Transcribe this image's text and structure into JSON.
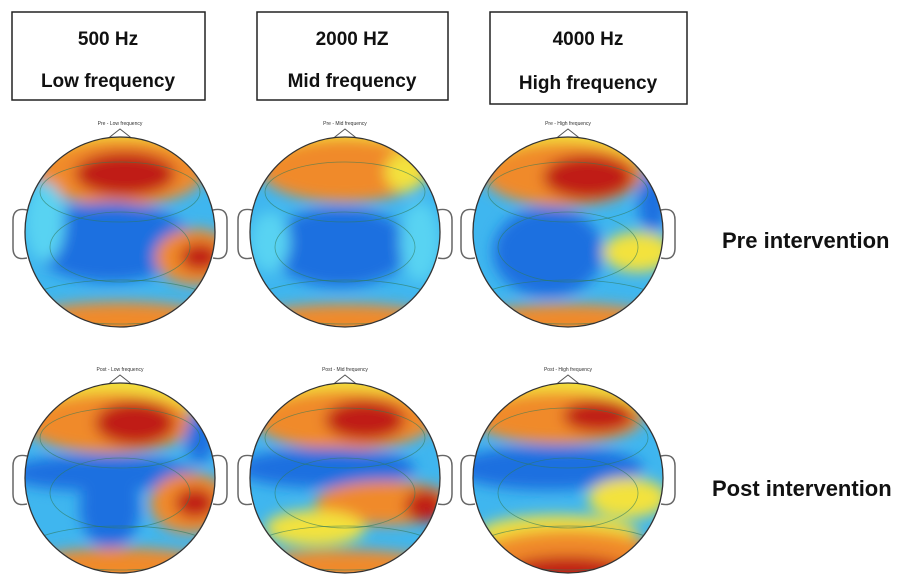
{
  "columns": [
    {
      "title": "500 Hz",
      "subtitle": "Low frequency"
    },
    {
      "title": "2000 HZ",
      "subtitle": "Mid frequency"
    },
    {
      "title": "4000 Hz",
      "subtitle": "High frequency"
    }
  ],
  "rows": [
    {
      "label": "Pre intervention",
      "maps": [
        "Pre - Low frequency",
        "Pre - Mid frequency",
        "Pre - High frequency"
      ]
    },
    {
      "label": "Post intervention",
      "maps": [
        "Post - Low frequency",
        "Post - Mid frequency",
        "Post - High frequency"
      ]
    }
  ]
}
